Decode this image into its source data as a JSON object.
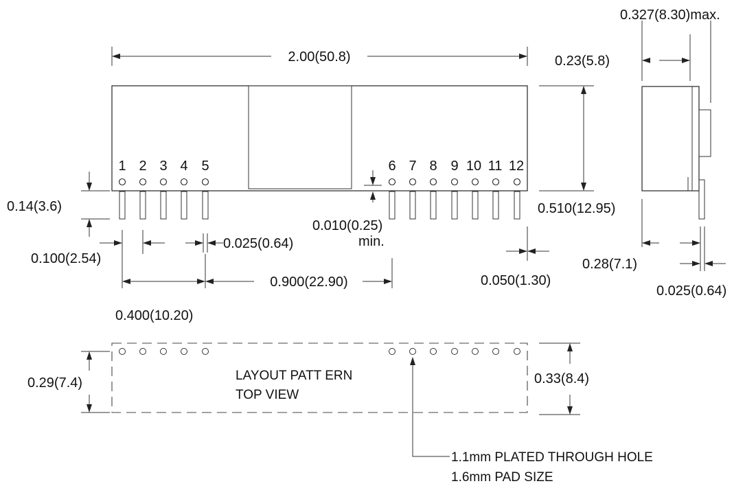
{
  "top_view": {
    "pins_left": [
      "1",
      "2",
      "3",
      "4",
      "5"
    ],
    "pins_right": [
      "6",
      "7",
      "8",
      "9",
      "10",
      "11",
      "12"
    ]
  },
  "dimensions": {
    "overall_length": "2.00(50.8)",
    "height": "0.510(12.95)",
    "pin_length": "0.14(3.6)",
    "pin_pitch": "0.100(2.54)",
    "pin_width": "0.025(0.64)",
    "standoff": "0.010(0.25)",
    "standoff_note": "min.",
    "group_span": "0.400(10.20)",
    "group_gap": "0.900(22.90)",
    "end_clearance": "0.050(1.30)"
  },
  "side_view": {
    "max_depth": "0.327(8.30)max.",
    "body_depth": "0.23(5.8)",
    "pin_offset": "0.28(7.1)",
    "pin_thickness": "0.025(0.64)"
  },
  "layout_pattern": {
    "title_line1": "LAYOUT PATT ERN",
    "title_line2": "TOP VIEW",
    "row_spacing": "0.29(7.4)",
    "outline_height": "0.33(8.4)",
    "hole_note_line1": "1.1mm PLATED THROUGH HOLE",
    "hole_note_line2": "1.6mm PAD SIZE"
  }
}
